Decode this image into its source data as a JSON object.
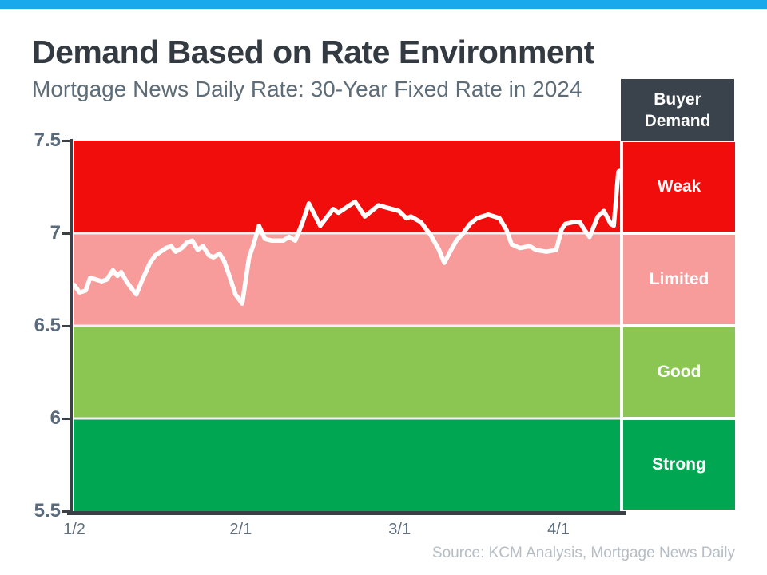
{
  "header": {
    "title": "Demand Based on Rate Environment",
    "subtitle": "Mortgage News Daily Rate: 30-Year Fixed Rate in 2024"
  },
  "legend": {
    "header_line1": "Buyer",
    "header_line2": "Demand"
  },
  "footer": {
    "source": "Source: KCM Analysis, Mortgage News Daily"
  },
  "colors": {
    "top_bar": "#17A9EB",
    "legend_header_bg": "#3A424B",
    "axis": "#3A4045",
    "tick_label": "#5A6A7B",
    "line": "#FFFFFF",
    "band_separator": "#F2F2F2"
  },
  "chart_data": {
    "type": "line",
    "title": "Demand Based on Rate Environment",
    "subtitle": "Mortgage News Daily Rate: 30-Year Fixed Rate in 2024",
    "x_unit": "business days since 1/2/2024",
    "x_tick_labels": [
      "1/2",
      "2/1",
      "3/1",
      "4/1"
    ],
    "x_tick_positions": [
      0,
      22,
      43,
      64
    ],
    "y_tick_labels": [
      "7.5",
      "7",
      "6.5",
      "6",
      "5.5"
    ],
    "y_tick_values": [
      7.5,
      7.0,
      6.5,
      6.0,
      5.5
    ],
    "ylim": [
      5.5,
      7.5
    ],
    "grid": false,
    "legend_position": "right-column",
    "bands": [
      {
        "label": "Weak",
        "range": [
          7.0,
          7.5
        ],
        "color": "#F20D0D"
      },
      {
        "label": "Limited",
        "range": [
          6.5,
          7.0
        ],
        "color": "#F89B9B"
      },
      {
        "label": "Good",
        "range": [
          6.0,
          6.5
        ],
        "color": "#8CC652"
      },
      {
        "label": "Strong",
        "range": [
          5.5,
          6.0
        ],
        "color": "#00A651"
      }
    ],
    "series": [
      {
        "name": "30-Year Fixed Rate",
        "color": "#FFFFFF",
        "points": [
          [
            0.0,
            6.72
          ],
          [
            0.7,
            6.68
          ],
          [
            1.5,
            6.69
          ],
          [
            2.1,
            6.76
          ],
          [
            2.9,
            6.75
          ],
          [
            3.6,
            6.74
          ],
          [
            4.3,
            6.75
          ],
          [
            5.1,
            6.8
          ],
          [
            5.7,
            6.77
          ],
          [
            6.2,
            6.79
          ],
          [
            6.9,
            6.74
          ],
          [
            7.6,
            6.7
          ],
          [
            8.2,
            6.67
          ],
          [
            8.9,
            6.74
          ],
          [
            10.0,
            6.84
          ],
          [
            10.7,
            6.88
          ],
          [
            11.4,
            6.9
          ],
          [
            12.1,
            6.92
          ],
          [
            12.8,
            6.93
          ],
          [
            13.4,
            6.9
          ],
          [
            14.2,
            6.92
          ],
          [
            14.9,
            6.95
          ],
          [
            15.6,
            6.96
          ],
          [
            16.3,
            6.91
          ],
          [
            17.0,
            6.93
          ],
          [
            17.8,
            6.88
          ],
          [
            18.4,
            6.87
          ],
          [
            19.2,
            6.89
          ],
          [
            19.8,
            6.85
          ],
          [
            20.5,
            6.77
          ],
          [
            21.3,
            6.67
          ],
          [
            22.2,
            6.62
          ],
          [
            23.1,
            6.87
          ],
          [
            23.7,
            6.94
          ],
          [
            24.4,
            7.04
          ],
          [
            25.2,
            6.97
          ],
          [
            26.1,
            6.96
          ],
          [
            26.9,
            6.96
          ],
          [
            27.6,
            6.96
          ],
          [
            28.4,
            6.98
          ],
          [
            29.2,
            6.96
          ],
          [
            30.1,
            7.05
          ],
          [
            31.0,
            7.16
          ],
          [
            32.5,
            7.04
          ],
          [
            34.2,
            7.13
          ],
          [
            34.9,
            7.11
          ],
          [
            37.1,
            7.17
          ],
          [
            38.4,
            7.09
          ],
          [
            40.2,
            7.15
          ],
          [
            42.9,
            7.12
          ],
          [
            43.9,
            7.08
          ],
          [
            44.5,
            7.09
          ],
          [
            45.8,
            7.06
          ],
          [
            47.1,
            6.99
          ],
          [
            48.2,
            6.91
          ],
          [
            48.9,
            6.84
          ],
          [
            49.8,
            6.91
          ],
          [
            50.5,
            6.96
          ],
          [
            51.4,
            7.0
          ],
          [
            52.3,
            7.05
          ],
          [
            53.2,
            7.08
          ],
          [
            54.7,
            7.1
          ],
          [
            55.5,
            7.09
          ],
          [
            56.2,
            7.08
          ],
          [
            57.1,
            7.02
          ],
          [
            57.8,
            6.94
          ],
          [
            58.9,
            6.92
          ],
          [
            60.2,
            6.93
          ],
          [
            61.0,
            6.91
          ],
          [
            62.4,
            6.9
          ],
          [
            63.7,
            6.91
          ],
          [
            64.4,
            7.02
          ],
          [
            64.9,
            7.05
          ],
          [
            66.0,
            7.06
          ],
          [
            66.8,
            7.06
          ],
          [
            67.4,
            7.02
          ],
          [
            68.1,
            6.98
          ],
          [
            69.2,
            7.09
          ],
          [
            70.0,
            7.12
          ],
          [
            70.9,
            7.05
          ],
          [
            71.3,
            7.04
          ],
          [
            71.9,
            7.33
          ],
          [
            72.1,
            7.34
          ]
        ]
      }
    ]
  }
}
